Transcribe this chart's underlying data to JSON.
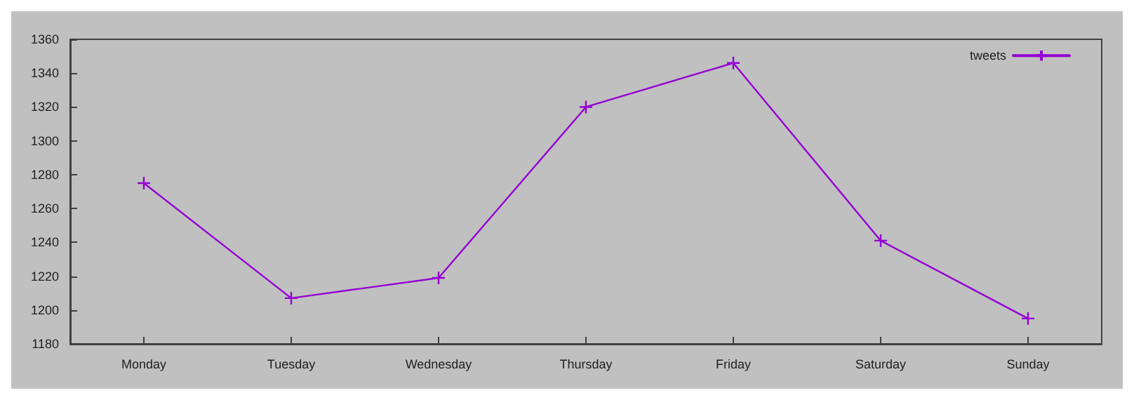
{
  "chart_data": {
    "type": "line",
    "categories": [
      "Monday",
      "Tuesday",
      "Wednesday",
      "Thursday",
      "Friday",
      "Saturday",
      "Sunday"
    ],
    "series": [
      {
        "name": "tweets",
        "color": "#9400d3",
        "values": [
          1275,
          1207,
          1219,
          1320,
          1346,
          1241,
          1195
        ]
      }
    ],
    "ylim": [
      1180,
      1360
    ],
    "yticks": [
      1180,
      1200,
      1220,
      1240,
      1260,
      1280,
      1300,
      1320,
      1340,
      1360
    ],
    "grid": false,
    "legend": "top right",
    "marker": "cross",
    "line_style": "solid"
  }
}
